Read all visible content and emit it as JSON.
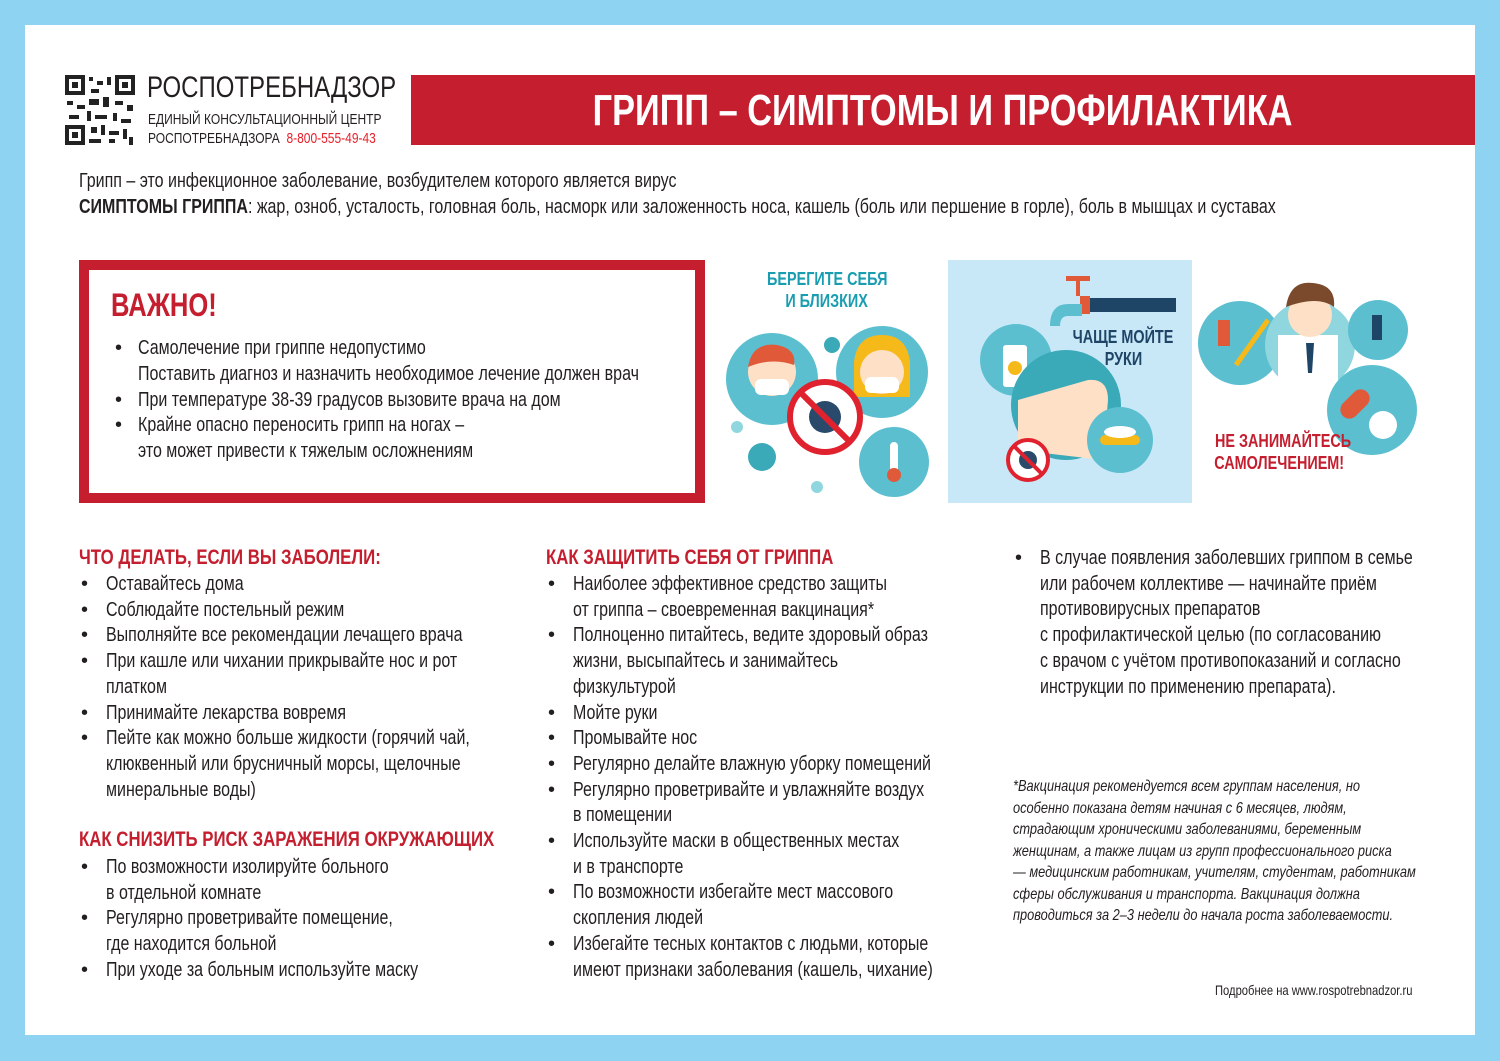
{
  "header": {
    "org_name": "РОСПОТРЕБНАДЗОР",
    "center_line1": "ЕДИНЫЙ КОНСУЛЬТАЦИОННЫЙ ЦЕНТР",
    "center_line2": "РОСПОТРЕБНАДЗОРА",
    "phone": "8-800-555-49-43",
    "title": "ГРИПП – СИМПТОМЫ И ПРОФИЛАКТИКА"
  },
  "intro": {
    "line1": "Грипп – это инфекционное заболевание, возбудителем которого является вирус",
    "symptoms_label": "СИМПТОМЫ ГРИППА",
    "symptoms_text": ": жар, озноб, усталость, головная боль, насморк   или заложенность носа, кашель (боль или першение в горле), боль в мышцах и суставах"
  },
  "important": {
    "heading": "ВАЖНО!",
    "items": [
      {
        "lines": [
          "Самолечение при гриппе недопустимо",
          "Поставить диагноз и назначить необходимое лечение должен врач"
        ]
      },
      {
        "lines": [
          "При температуре 38-39 градусов вызовите врача на дом"
        ]
      },
      {
        "lines": [
          "Крайне опасно переносить грипп на ногах –",
          "это может привести к тяжелым осложнениям"
        ]
      }
    ]
  },
  "illustrations": {
    "panel1_caption": [
      "БЕРЕГИТЕ СЕБЯ",
      "И БЛИЗКИХ"
    ],
    "panel2_caption": [
      "ЧАЩЕ МОЙТЕ",
      "РУКИ"
    ],
    "panel3_caption": [
      "НЕ ЗАНИМАЙТЕСЬ",
      "САМОЛЕЧЕНИЕМ!"
    ]
  },
  "col1": {
    "heading1": "ЧТО ДЕЛАТЬ, ЕСЛИ ВЫ ЗАБОЛЕЛИ:",
    "items1": [
      {
        "lines": [
          "Оставайтесь дома"
        ]
      },
      {
        "lines": [
          "Соблюдайте постельный режим"
        ]
      },
      {
        "lines": [
          "Выполняйте все рекомендации лечащего врача"
        ]
      },
      {
        "lines": [
          "При кашле или чихании прикрывайте нос и рот",
          "платком"
        ]
      },
      {
        "lines": [
          "Принимайте лекарства вовремя"
        ]
      },
      {
        "lines": [
          "Пейте как можно больше жидкости (горячий чай,",
          "клюквенный или брусничный морсы, щелочные",
          "минеральные воды)"
        ]
      }
    ],
    "heading2": "КАК СНИЗИТЬ РИСК ЗАРАЖЕНИЯ ОКРУЖАЮЩИХ",
    "items2": [
      {
        "lines": [
          "По возможности изолируйте больного",
          "в отдельной комнате"
        ]
      },
      {
        "lines": [
          "Регулярно проветривайте помещение,",
          "где находится больной"
        ]
      },
      {
        "lines": [
          "При уходе за больным используйте маску"
        ]
      }
    ]
  },
  "col2": {
    "heading": "КАК ЗАЩИТИТЬ СЕБЯ ОТ ГРИППА",
    "items": [
      {
        "lines": [
          "Наиболее эффективное средство защиты",
          "от гриппа – своевременная вакцинация*"
        ]
      },
      {
        "lines": [
          "Полноценно питайтесь, ведите здоровый образ",
          "жизни, высыпайтесь и занимайтесь",
          "физкультурой"
        ]
      },
      {
        "lines": [
          "Мойте руки"
        ]
      },
      {
        "lines": [
          "Промывайте нос"
        ]
      },
      {
        "lines": [
          "Регулярно делайте влажную уборку помещений"
        ]
      },
      {
        "lines": [
          "Регулярно проветривайте и увлажняйте воздух",
          "в помещении"
        ]
      },
      {
        "lines": [
          "Используйте маски в общественных местах",
          "и в транспорте"
        ]
      },
      {
        "lines": [
          "По возможности избегайте мест массового",
          "скопления людей"
        ]
      },
      {
        "lines": [
          "Избегайте тесных контактов с людьми, которые",
          "имеют признаки заболевания (кашель, чихание)"
        ]
      }
    ]
  },
  "col3": {
    "items": [
      {
        "lines": [
          "В случае появления заболевших гриппом в семье",
          "или рабочем коллективе — начинайте приём",
          "противовирусных препаратов",
          "с профилактической целью (по согласованию",
          "с врачом с учётом противопоказаний и согласно",
          "инструкции по применению препарата)."
        ]
      }
    ],
    "footnote": [
      "*Вакцинация рекомендуется всем группам населения, но",
      "особенно показана детям начиная с 6 месяцев, людям,",
      "страдающим хроническими заболеваниями, беременным",
      "женщинам, а также лицам из групп профессионального риска",
      "— медицинским работникам, учителям, студентам, работникам",
      "сферы обслуживания и транспорта. Вакцинация должна",
      "проводиться за 2–3 недели до начала роста заболеваемости."
    ],
    "more_info": "Подробнее на www.rospotrebnadzor.ru"
  },
  "colors": {
    "brand_red": "#c41e2f",
    "frame_blue": "#8fd3f2",
    "teal": "#1a9db0",
    "panel_blue": "#c8e8f8"
  }
}
